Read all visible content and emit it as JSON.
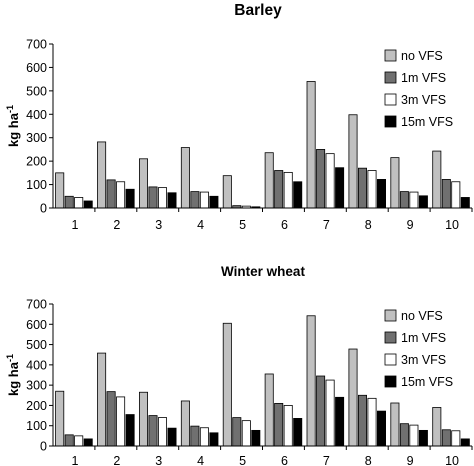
{
  "chart_data": [
    {
      "type": "bar",
      "title": "Barley",
      "ylabel": "kg ha",
      "ylabel_superscript": "-1",
      "categories": [
        "1",
        "2",
        "3",
        "4",
        "5",
        "6",
        "7",
        "8",
        "9",
        "10"
      ],
      "ylim": [
        0,
        700
      ],
      "yticks": [
        0,
        100,
        200,
        300,
        400,
        500,
        600,
        700
      ],
      "legend": "top-right",
      "series": [
        {
          "name": "no VFS",
          "color": "#c0c0c0",
          "values": [
            150,
            282,
            210,
            258,
            138,
            236,
            540,
            398,
            215,
            243
          ]
        },
        {
          "name": "1m VFS",
          "color": "#707070",
          "values": [
            50,
            120,
            90,
            70,
            10,
            160,
            250,
            170,
            70,
            122
          ]
        },
        {
          "name": "3m VFS",
          "color": "#ffffff",
          "values": [
            45,
            112,
            87,
            68,
            8,
            152,
            232,
            160,
            68,
            112
          ]
        },
        {
          "name": "15m VFS",
          "color": "#000000",
          "values": [
            30,
            80,
            65,
            50,
            5,
            112,
            172,
            122,
            52,
            45
          ]
        }
      ]
    },
    {
      "type": "bar",
      "title": "Winter wheat",
      "ylabel": "kg ha",
      "ylabel_superscript": "-1",
      "categories": [
        "1",
        "2",
        "3",
        "4",
        "5",
        "6",
        "7",
        "8",
        "9",
        "10"
      ],
      "ylim": [
        0,
        700
      ],
      "yticks": [
        0,
        100,
        200,
        300,
        400,
        500,
        600,
        700
      ],
      "legend": "top-right",
      "series": [
        {
          "name": "no VFS",
          "color": "#c0c0c0",
          "values": [
            270,
            458,
            265,
            222,
            605,
            355,
            642,
            478,
            212,
            190
          ]
        },
        {
          "name": "1m VFS",
          "color": "#707070",
          "values": [
            55,
            268,
            150,
            98,
            140,
            210,
            345,
            250,
            110,
            80
          ]
        },
        {
          "name": "3m VFS",
          "color": "#ffffff",
          "values": [
            50,
            242,
            140,
            90,
            125,
            200,
            325,
            235,
            103,
            75
          ]
        },
        {
          "name": "15m VFS",
          "color": "#000000",
          "values": [
            35,
            155,
            88,
            65,
            77,
            136,
            240,
            172,
            77,
            35
          ]
        }
      ]
    }
  ]
}
